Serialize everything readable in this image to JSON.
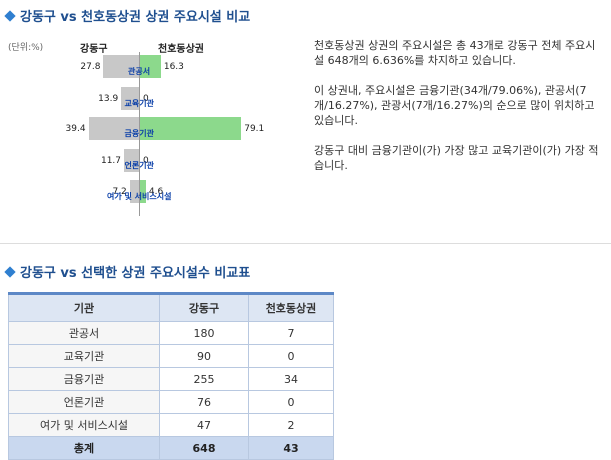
{
  "section1": {
    "title": "강동구 vs 천호동상권 상권 주요시설 비교"
  },
  "chart_data": {
    "type": "bar",
    "unit_label": "(단위:%)",
    "series": [
      {
        "name": "강동구",
        "values": [
          27.8,
          13.9,
          39.4,
          11.7,
          7.2
        ]
      },
      {
        "name": "천호동상권",
        "values": [
          16.3,
          0,
          79.1,
          0,
          4.6
        ]
      }
    ],
    "categories": [
      "관공서",
      "교육기관",
      "금융기관",
      "언론기관",
      "여가 및 서비스시설"
    ],
    "value_labels_left": [
      "27.8",
      "13.9",
      "39.4",
      "11.7",
      "7.2"
    ],
    "value_labels_right": [
      "16.3",
      "0",
      "79.1",
      "0",
      "4.6"
    ],
    "colors": {
      "left": "#c8c8c8",
      "right": "#8cd98c"
    }
  },
  "description": {
    "p1": "천호동상권 상권의 주요시설은 총 43개로 강동구 전체 주요시설 648개의 6.636%를 차지하고 있습니다.",
    "p2": "이 상권내, 주요시설은 금융기관(34개/79.06%), 관공서(7개/16.27%), 관광서(7개/16.27%)의 순으로 많이 위치하고 있습니다.",
    "p3": "강동구 대비 금융기관이(가) 가장 많고 교육기관이(가) 가장 적습니다."
  },
  "section2": {
    "title": "강동구 vs 선택한 상권 주요시설수 비교표"
  },
  "table": {
    "headers": [
      "기관",
      "강동구",
      "천호동상권"
    ],
    "rows": [
      [
        "관공서",
        "180",
        "7"
      ],
      [
        "교육기관",
        "90",
        "0"
      ],
      [
        "금융기관",
        "255",
        "34"
      ],
      [
        "언론기관",
        "76",
        "0"
      ],
      [
        "여가 및 서비스시설",
        "47",
        "2"
      ]
    ],
    "total": [
      "총계",
      "648",
      "43"
    ]
  }
}
